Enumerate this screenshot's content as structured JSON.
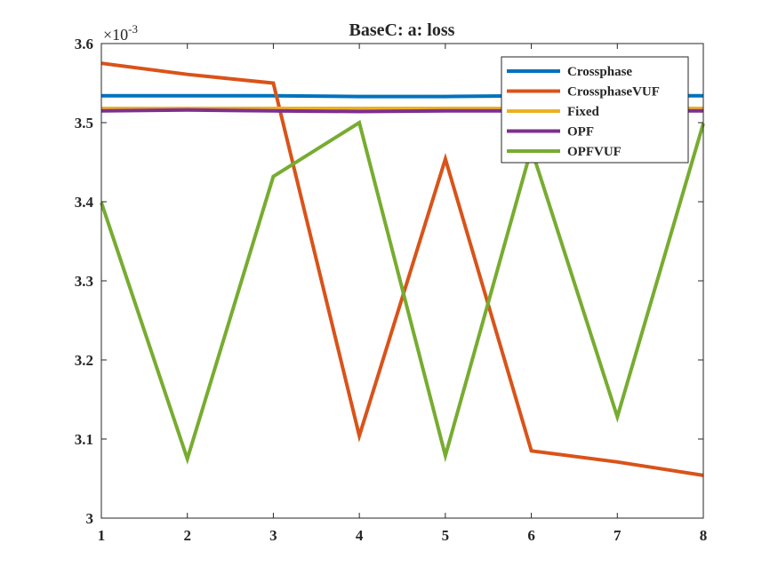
{
  "chart_data": {
    "type": "line",
    "title": "BaseC: a: loss",
    "xlabel": "",
    "ylabel": "",
    "x": [
      1,
      2,
      3,
      4,
      5,
      6,
      7,
      8
    ],
    "xlim": [
      1,
      8
    ],
    "ylim": [
      0.003,
      0.0036
    ],
    "xticks": [
      "1",
      "2",
      "3",
      "4",
      "5",
      "6",
      "7",
      "8"
    ],
    "yticks": [
      "3",
      "3.1",
      "3.2",
      "3.3",
      "3.4",
      "3.5",
      "3.6"
    ],
    "ytick_values": [
      0.003,
      0.0031,
      0.0032,
      0.0033,
      0.0034,
      0.0035,
      0.0036
    ],
    "y_exponent_base": "×10",
    "y_exponent_power": "-3",
    "grid": false,
    "legend_position": "top-right",
    "series": [
      {
        "name": "Crossphase",
        "color": "#0072BD",
        "values": [
          0.003534,
          0.003534,
          0.003534,
          0.003533,
          0.003533,
          0.003534,
          0.003534,
          0.003534
        ]
      },
      {
        "name": "CrossphaseVUF",
        "color": "#D95319",
        "values": [
          0.003575,
          0.003561,
          0.00355,
          0.003104,
          0.003454,
          0.003085,
          0.003071,
          0.003054
        ]
      },
      {
        "name": "Fixed",
        "color": "#EDB120",
        "values": [
          0.003518,
          0.003518,
          0.003518,
          0.003518,
          0.003518,
          0.003518,
          0.003518,
          0.003518
        ]
      },
      {
        "name": "OPF",
        "color": "#7E2F8E",
        "values": [
          0.003515,
          0.003516,
          0.003515,
          0.003514,
          0.003515,
          0.003515,
          0.003515,
          0.003515
        ]
      },
      {
        "name": "OPFVUF",
        "color": "#77AC30",
        "values": [
          0.003399,
          0.003075,
          0.003432,
          0.0035,
          0.003079,
          0.003467,
          0.003128,
          0.003499
        ]
      }
    ]
  }
}
